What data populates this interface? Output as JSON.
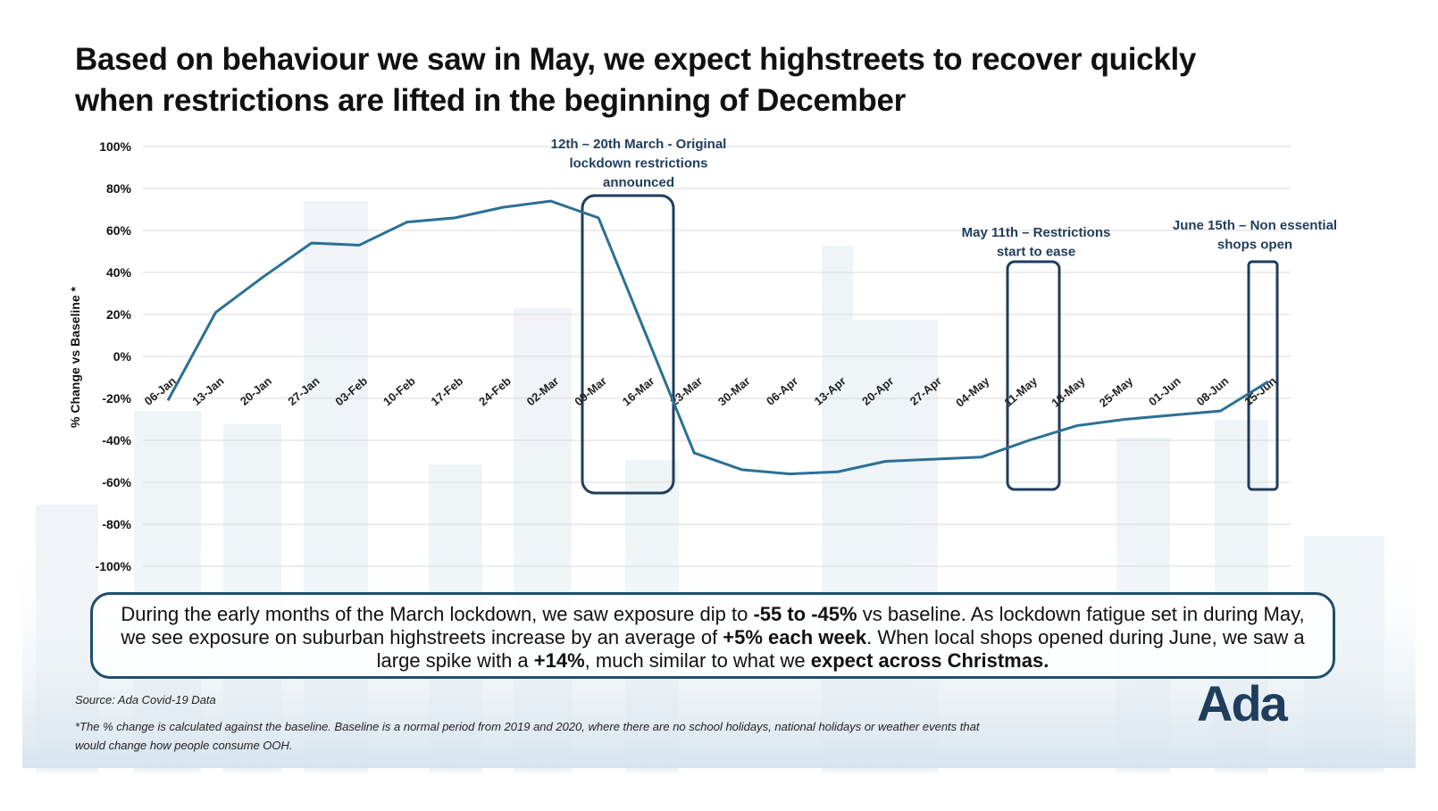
{
  "chart_data": {
    "type": "line",
    "title": [
      "Based on behaviour we saw in May, we expect highstreets to recover quickly",
      "when restrictions are lifted in the beginning of December"
    ],
    "y_label": "% Change vs Baseline *",
    "categories": [
      "06-Jan",
      "13-Jan",
      "20-Jan",
      "27-Jan",
      "03-Feb",
      "10-Feb",
      "17-Feb",
      "24-Feb",
      "02-Mar",
      "09-Mar",
      "16-Mar",
      "23-Mar",
      "30-Mar",
      "06-Apr",
      "13-Apr",
      "20-Apr",
      "27-Apr",
      "04-May",
      "11-May",
      "18-May",
      "25-May",
      "01-Jun",
      "08-Jun",
      "15-Jun"
    ],
    "values": [
      -21,
      21,
      38,
      54,
      53,
      64,
      66,
      71,
      74,
      66,
      10,
      -46,
      -54,
      -56,
      -55,
      -50,
      -49,
      -48,
      -40,
      -33,
      -30,
      -28,
      -26,
      -12
    ],
    "color": "#2b7095",
    "ylim": [
      -100,
      100
    ],
    "yticks": [
      {
        "value": 100,
        "label": "100%"
      },
      {
        "value": 80,
        "label": "80%"
      },
      {
        "value": 60,
        "label": "60%"
      },
      {
        "value": 40,
        "label": "40%"
      },
      {
        "value": 20,
        "label": "20%"
      },
      {
        "value": 0,
        "label": "0%"
      },
      {
        "value": -20,
        "label": "-20%"
      },
      {
        "value": -40,
        "label": "-40%"
      },
      {
        "value": -60,
        "label": "-60%"
      },
      {
        "value": -80,
        "label": "-80%"
      },
      {
        "value": -100,
        "label": "-100%"
      }
    ],
    "grid": true,
    "annotations": [
      [
        "12th – 20th March - Original",
        "lockdown restrictions",
        "announced"
      ],
      [
        "May 11th – Restrictions",
        "start to ease"
      ],
      [
        "June 15th – Non essential",
        "shops open"
      ]
    ],
    "callout": [
      "During the early months of the March lockdown, we saw exposure dip to ",
      "-55 to -45%",
      " vs baseline. As lockdown fatigue set in during May, we see exposure on suburban highstreets increase by an average of ",
      "+5% each week",
      ". When local shops opened during June, we saw a large spike with a ",
      "+14%",
      ", much similar to what we ",
      "expect across Christmas."
    ],
    "source": "Source: Ada Covid-19 Data",
    "footnote": "*The % change is calculated against the baseline. Baseline is a normal period from 2019 and 2020, where there are no school holidays, national holidays or weather events that would change how people consume OOH.",
    "logo": "Ada"
  }
}
